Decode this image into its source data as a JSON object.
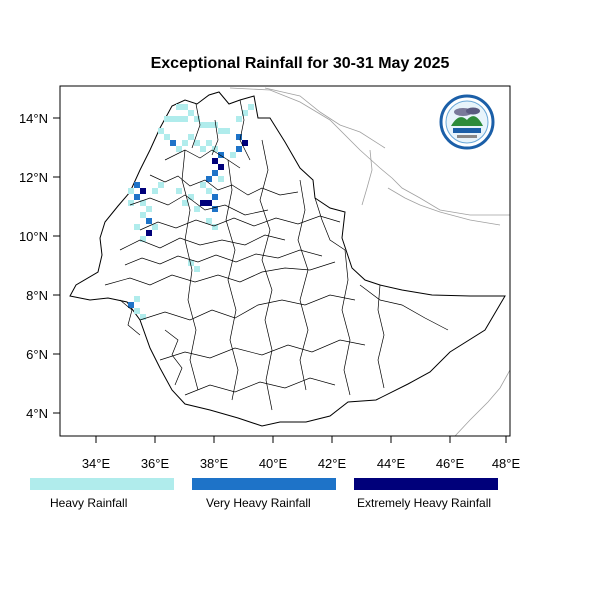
{
  "title": "Exceptional Rainfall for 30-31 May 2025",
  "map": {
    "lon_range": [
      32.9,
      48.2
    ],
    "lat_range": [
      3.2,
      15.0
    ],
    "x_ticks": [
      "34°E",
      "36°E",
      "38°E",
      "40°E",
      "42°E",
      "44°E",
      "46°E",
      "48°E"
    ],
    "y_ticks": [
      "14°N",
      "12°N",
      "10°N",
      "8°N",
      "6°N",
      "4°N"
    ],
    "border_color": "#000000",
    "neighbor_color": "#a0a0a0"
  },
  "legend": [
    {
      "label": "Heavy Rainfall",
      "color": "#b0ecec"
    },
    {
      "label": "Very Heavy Rainfall",
      "color": "#1e73c8"
    },
    {
      "label": "Extremely Heavy Rainfall",
      "color": "#00007a"
    }
  ],
  "logo": {
    "icon": "ethiopian-meteorology-institute-logo"
  }
}
